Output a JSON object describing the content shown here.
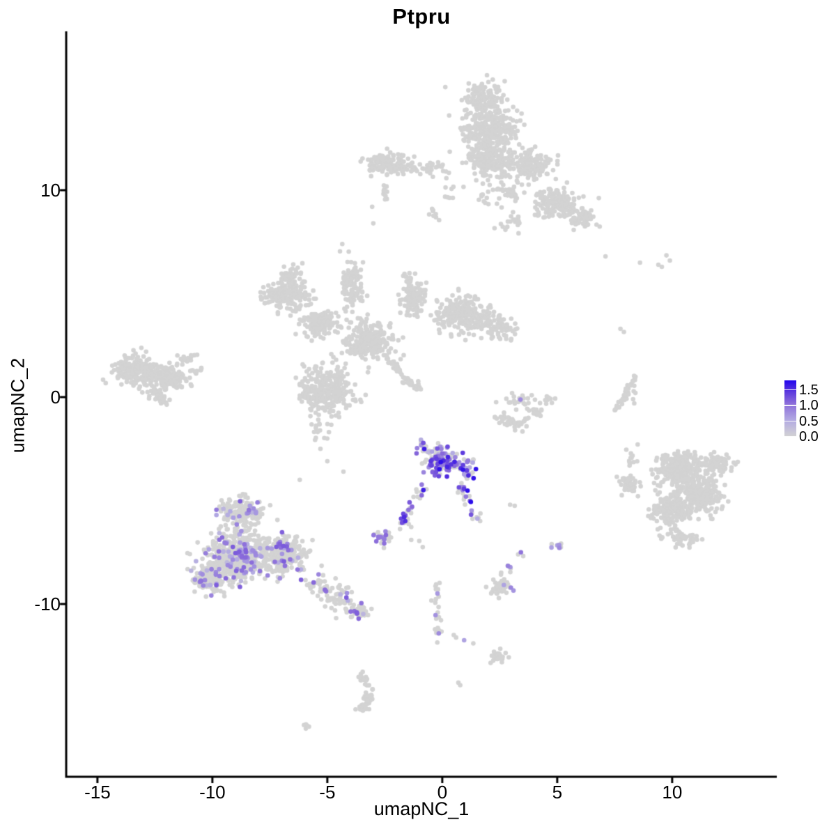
{
  "title": "Ptpru",
  "colors": {
    "background": "#FFFFFF",
    "axis": "#000000",
    "grey": "#D3D3D3",
    "max_blue": "#2104EE"
  },
  "chart_data": {
    "type": "scatter",
    "title": "Ptpru",
    "xlabel": "umapNC_1",
    "ylabel": "umapNC_2",
    "xlim": [
      -16.36,
      14.55
    ],
    "ylim": [
      -18.35,
      17.68
    ],
    "x_ticks": [
      -15,
      -10,
      -5,
      0,
      5,
      10
    ],
    "y_ticks": [
      10,
      0,
      -10
    ],
    "grid": false,
    "point_radius_px": 3.3,
    "seed": 7,
    "color_zero": "#D3D3D3",
    "gradient": [
      {
        "t": 0.0,
        "c": "#D3D3D3"
      },
      {
        "t": 0.3,
        "c": "#B2A9E2"
      },
      {
        "t": 0.6,
        "c": "#8A6BDA"
      },
      {
        "t": 0.85,
        "c": "#4E2BDF"
      },
      {
        "t": 1.0,
        "c": "#2104EE"
      }
    ],
    "legend": {
      "position": "right",
      "vmax": 1.8,
      "entries": [
        {
          "label": "1.5",
          "value": 1.5
        },
        {
          "label": "1.0",
          "value": 1.0
        },
        {
          "label": "0.5",
          "value": 0.5
        },
        {
          "label": "0.0",
          "value": 0.0
        }
      ]
    },
    "clusters": [
      {
        "name": "top-cluster",
        "blobs": [
          [
            1.8,
            14.5,
            0.85,
            0.8,
            110
          ],
          [
            2.0,
            13.0,
            1.3,
            0.95,
            280
          ],
          [
            2.0,
            11.5,
            1.15,
            0.75,
            190
          ],
          [
            -2.3,
            11.3,
            1.05,
            0.55,
            140
          ],
          [
            -0.7,
            11.05,
            1.1,
            0.25,
            35
          ],
          [
            3.9,
            11.2,
            0.9,
            0.75,
            150
          ],
          [
            5.0,
            9.4,
            1.0,
            0.75,
            150
          ],
          [
            6.1,
            8.7,
            0.55,
            0.45,
            55
          ],
          [
            2.6,
            9.8,
            1.2,
            0.6,
            50
          ],
          [
            3.1,
            8.5,
            0.7,
            0.5,
            20
          ],
          [
            -2.5,
            9.9,
            0.25,
            0.5,
            10
          ],
          [
            -0.3,
            8.8,
            0.3,
            0.3,
            8
          ],
          [
            0.2,
            10.0,
            0.4,
            0.6,
            8
          ]
        ],
        "points": [
          [
            -3.05,
            9.2,
            0
          ],
          [
            -3.0,
            8.4,
            0
          ]
        ]
      },
      {
        "name": "left-cluster",
        "blobs": [
          [
            -13.3,
            1.3,
            1.0,
            0.7,
            200
          ],
          [
            -11.9,
            0.95,
            0.85,
            0.6,
            130
          ],
          [
            -12.4,
            0.05,
            0.6,
            0.35,
            35
          ],
          [
            -11.1,
            1.9,
            0.4,
            0.3,
            18
          ],
          [
            -10.7,
            1.2,
            0.3,
            0.25,
            10
          ]
        ]
      },
      {
        "name": "central-cluster",
        "blobs": [
          [
            -6.8,
            4.9,
            1.05,
            0.75,
            170
          ],
          [
            -6.6,
            6.0,
            0.5,
            0.4,
            35
          ],
          [
            -5.3,
            3.6,
            0.85,
            0.65,
            140
          ],
          [
            -3.9,
            5.3,
            0.5,
            1.2,
            110
          ],
          [
            -3.2,
            2.7,
            1.05,
            0.85,
            250
          ],
          [
            -5.0,
            0.4,
            1.15,
            1.15,
            300
          ],
          [
            -1.3,
            4.9,
            0.55,
            1.05,
            120
          ],
          [
            0.9,
            4.0,
            1.25,
            0.85,
            220
          ],
          [
            2.4,
            3.3,
            0.75,
            0.55,
            80
          ],
          [
            -5.4,
            -1.6,
            0.7,
            0.6,
            15
          ]
        ],
        "lines": [
          [
            -2.45,
            1.9,
            -1.05,
            0.35,
            50,
            0.09
          ]
        ],
        "points": [
          [
            -4.35,
            7.4,
            0
          ],
          [
            -4.45,
            7.05,
            0
          ]
        ]
      },
      {
        "name": "crescent-cluster",
        "blobs": [
          [
            3.3,
            -0.2,
            0.8,
            0.45,
            22
          ],
          [
            4.75,
            -0.1,
            0.3,
            0.3,
            8
          ]
        ],
        "lines": [
          [
            2.3,
            -1.0,
            3.3,
            -1.35,
            30,
            0.14
          ],
          [
            3.3,
            -1.35,
            4.65,
            -0.25,
            30,
            0.14
          ]
        ],
        "points": [
          [
            3.4,
            -0.12,
            0.8
          ]
        ]
      },
      {
        "name": "right-cluster",
        "blobs": [
          [
            10.3,
            -3.4,
            1.0,
            0.8,
            250
          ],
          [
            11.3,
            -4.6,
            0.95,
            0.9,
            260
          ],
          [
            10.0,
            -5.4,
            0.95,
            0.8,
            220
          ],
          [
            11.9,
            -3.2,
            0.65,
            0.6,
            80
          ],
          [
            8.2,
            -4.3,
            0.4,
            0.5,
            45
          ],
          [
            8.2,
            -3.0,
            0.35,
            0.6,
            12
          ],
          [
            10.4,
            -6.8,
            0.8,
            0.45,
            50
          ]
        ]
      },
      {
        "name": "center-expressing-cluster",
        "expr": {
          "frac": 0.5,
          "min": 0.35,
          "max": 1.75
        },
        "blobs": [
          [
            0.0,
            -3.1,
            0.8,
            0.7,
            160
          ],
          [
            -0.9,
            -2.35,
            0.3,
            0.35,
            14
          ],
          [
            1.1,
            -3.6,
            0.45,
            0.55,
            22
          ]
        ],
        "lines": [
          [
            -0.85,
            -4.3,
            -1.85,
            -6.3,
            32,
            0.13
          ],
          [
            0.65,
            -4.1,
            1.55,
            -5.9,
            28,
            0.13
          ]
        ],
        "points": [
          [
            2.95,
            -5.2,
            0
          ],
          [
            3.15,
            -5.25,
            0
          ]
        ]
      },
      {
        "name": "small-expressing-cluster",
        "expr": {
          "frac": 0.45,
          "min": 0.5,
          "max": 1.1
        },
        "blobs": [
          [
            -2.65,
            -6.8,
            0.5,
            0.3,
            26
          ]
        ],
        "points": [
          [
            -1.35,
            -6.9,
            0
          ],
          [
            -1.0,
            -6.95,
            0
          ],
          [
            -0.85,
            -7.25,
            0
          ]
        ]
      },
      {
        "name": "left-bottom-cluster",
        "expr": {
          "frac": 0.13,
          "min": 0.35,
          "max": 1.2
        },
        "blobs": [
          [
            -8.7,
            -5.6,
            0.95,
            0.75,
            190
          ],
          [
            -8.9,
            -7.7,
            1.4,
            1.05,
            520
          ],
          [
            -10.1,
            -8.8,
            0.75,
            0.7,
            130
          ],
          [
            -6.9,
            -7.6,
            1.0,
            0.9,
            260
          ],
          [
            -3.6,
            -10.4,
            0.45,
            0.3,
            35
          ]
        ],
        "lines": [
          [
            -5.7,
            -8.8,
            -3.9,
            -10.2,
            85,
            0.33
          ]
        ]
      },
      {
        "name": "small-purple-cluster",
        "expr": {
          "frac": 0.55,
          "min": 0.6,
          "max": 1.15
        },
        "blobs": [
          [
            5.05,
            -7.2,
            0.28,
            0.22,
            9
          ]
        ]
      },
      {
        "name": "purple-pair",
        "points": [
          [
            3.42,
            -7.5,
            1.0
          ],
          [
            3.52,
            -7.68,
            0
          ],
          [
            3.3,
            -7.6,
            0
          ]
        ]
      },
      {
        "name": "lower-middle-cluster",
        "expr": {
          "frac": 0.09,
          "min": 0.5,
          "max": 0.9
        },
        "blobs": [
          [
            2.55,
            -9.1,
            0.5,
            0.45,
            42
          ],
          [
            2.95,
            -8.25,
            0.12,
            0.3,
            5
          ]
        ]
      },
      {
        "name": "trailing-chain",
        "expr": {
          "frac": 0.13,
          "min": 0.6,
          "max": 0.9
        },
        "lines": [
          [
            -0.3,
            -9.0,
            -0.1,
            -11.9,
            24,
            0.12
          ]
        ],
        "points": [
          [
            0.5,
            -11.5,
            0
          ],
          [
            0.6,
            -11.62,
            0
          ],
          [
            0.95,
            -11.75,
            0.6
          ],
          [
            1.35,
            -11.9,
            0
          ],
          [
            0.7,
            -13.8,
            0
          ],
          [
            0.78,
            -13.92,
            0
          ]
        ]
      },
      {
        "name": "bottom-small-cluster",
        "blobs": [
          [
            2.45,
            -12.55,
            0.4,
            0.28,
            26
          ]
        ]
      },
      {
        "name": "bottom-s-cluster",
        "blobs": [
          [
            -3.4,
            -15.0,
            0.28,
            0.18,
            12
          ]
        ],
        "lines": [
          [
            -3.6,
            -13.35,
            -3.05,
            -14.15,
            16,
            0.1
          ],
          [
            -3.1,
            -14.3,
            -3.45,
            -15.1,
            22,
            0.12
          ]
        ]
      },
      {
        "name": "tiny-bottom-cluster",
        "blobs": [
          [
            -5.95,
            -15.9,
            0.18,
            0.12,
            6
          ]
        ]
      },
      {
        "name": "right-arc-cluster",
        "lines": [
          [
            8.45,
            1.15,
            8.05,
            0.2,
            20,
            0.07
          ],
          [
            8.05,
            0.2,
            7.55,
            -0.6,
            20,
            0.07
          ]
        ],
        "points": [
          [
            8.35,
            0.55,
            0
          ],
          [
            8.4,
            0.2,
            0
          ],
          [
            8.35,
            -0.3,
            0
          ],
          [
            8.3,
            -0.1,
            0
          ]
        ]
      },
      {
        "name": "sparse-top-right",
        "points": [
          [
            7.1,
            6.8,
            0
          ],
          [
            8.6,
            6.5,
            0
          ],
          [
            9.4,
            6.4,
            0
          ],
          [
            9.75,
            6.85,
            0
          ],
          [
            9.9,
            6.6,
            0
          ],
          [
            9.55,
            6.3,
            0
          ],
          [
            7.75,
            3.3,
            0
          ],
          [
            7.9,
            3.15,
            0
          ]
        ]
      },
      {
        "name": "sparse-mid-left",
        "points": [
          [
            -4.3,
            -3.6,
            0
          ],
          [
            -6.2,
            -4.0,
            0
          ],
          [
            -5.3,
            -2.5,
            0
          ],
          [
            -5.0,
            -3.1,
            0
          ]
        ]
      }
    ]
  }
}
